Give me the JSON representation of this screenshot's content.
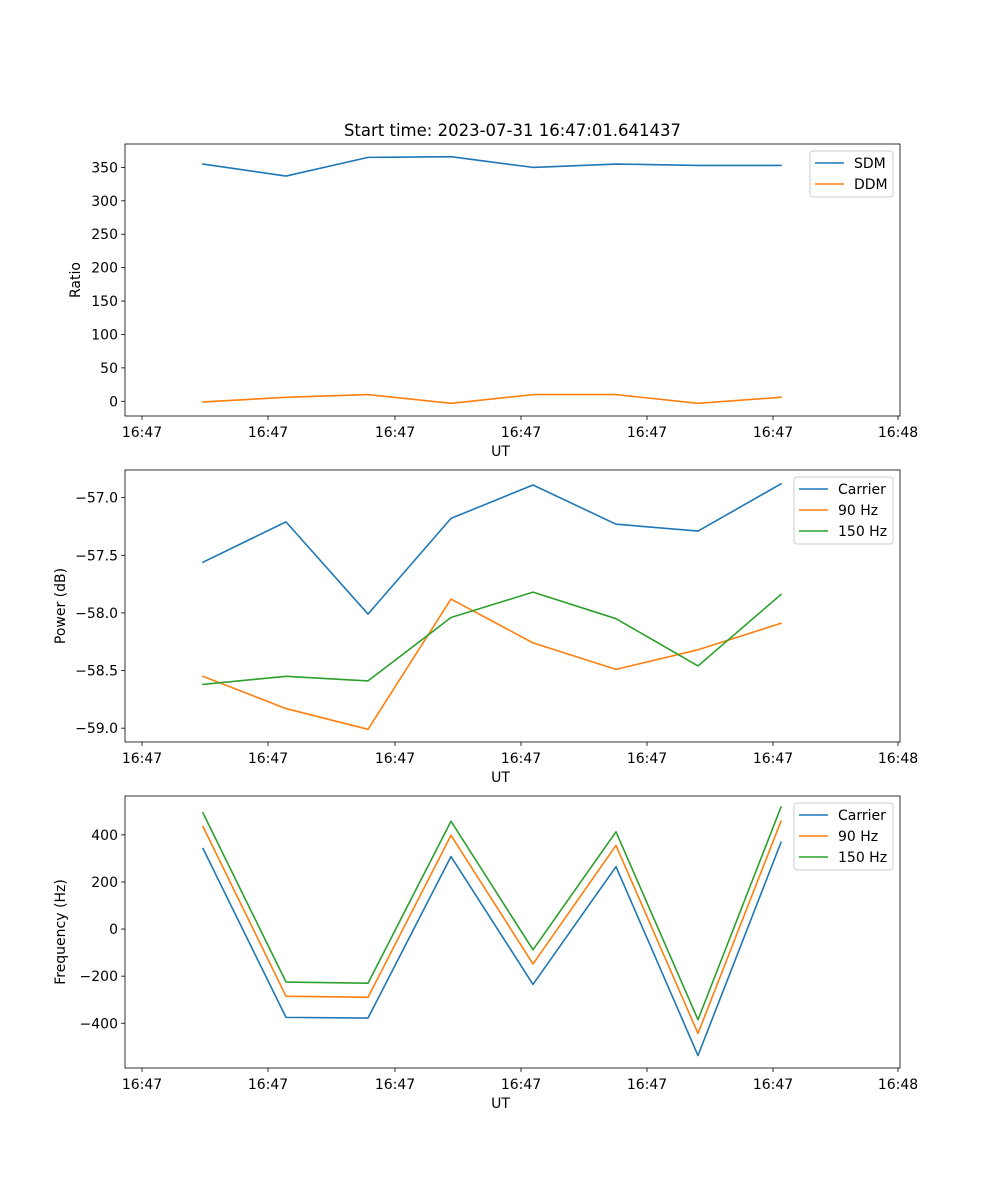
{
  "chart_data": [
    {
      "type": "line",
      "title": "Start time: 2023-07-31 16:47:01.641437",
      "xlabel": "UT",
      "ylabel": "Ratio",
      "x_tick_labels": [
        "16:47",
        "16:47",
        "16:47",
        "16:47",
        "16:47",
        "16:47",
        "16:48"
      ],
      "ylim": [
        -22,
        385
      ],
      "y_ticks": [
        0,
        50,
        100,
        150,
        200,
        250,
        300,
        350
      ],
      "y_tick_labels": [
        "0",
        "50",
        "100",
        "150",
        "200",
        "250",
        "300",
        "350"
      ],
      "legend_position": "top-right",
      "series": [
        {
          "name": "SDM",
          "color": "#1f77b4",
          "values": [
            355,
            337,
            365,
            366,
            350,
            355,
            353,
            353
          ]
        },
        {
          "name": "DDM",
          "color": "#ff7f0e",
          "values": [
            -1,
            6,
            10,
            -3,
            10,
            10,
            -3,
            6
          ]
        }
      ]
    },
    {
      "type": "line",
      "title": "",
      "xlabel": "UT",
      "ylabel": "Power (dB)",
      "x_tick_labels": [
        "16:47",
        "16:47",
        "16:47",
        "16:47",
        "16:47",
        "16:47",
        "16:48"
      ],
      "ylim": [
        -59.12,
        -56.76
      ],
      "y_ticks": [
        -59.0,
        -58.5,
        -58.0,
        -57.5,
        -57.0
      ],
      "y_tick_labels": [
        "−59.0",
        "−58.5",
        "−58.0",
        "−57.5",
        "−57.0"
      ],
      "legend_position": "top-right",
      "series": [
        {
          "name": "Carrier",
          "color": "#1f77b4",
          "values": [
            -57.56,
            -57.21,
            -58.01,
            -57.18,
            -56.89,
            -57.23,
            -57.29,
            -56.88
          ]
        },
        {
          "name": "90 Hz",
          "color": "#ff7f0e",
          "values": [
            -58.55,
            -58.83,
            -59.01,
            -57.88,
            -58.26,
            -58.49,
            -58.32,
            -58.09
          ]
        },
        {
          "name": "150 Hz",
          "color": "#2ca02c",
          "values": [
            -58.62,
            -58.55,
            -58.59,
            -58.04,
            -57.82,
            -58.05,
            -58.46,
            -57.84
          ]
        }
      ]
    },
    {
      "type": "line",
      "title": "",
      "xlabel": "UT",
      "ylabel": "Frequency (Hz)",
      "x_tick_labels": [
        "16:47",
        "16:47",
        "16:47",
        "16:47",
        "16:47",
        "16:47",
        "16:48"
      ],
      "ylim": [
        -590,
        565
      ],
      "y_ticks": [
        -400,
        -200,
        0,
        200,
        400
      ],
      "y_tick_labels": [
        "−400",
        "−200",
        "0",
        "200",
        "400"
      ],
      "legend_position": "top-right",
      "series": [
        {
          "name": "Carrier",
          "color": "#1f77b4",
          "values": [
            342,
            -375,
            -378,
            308,
            -235,
            265,
            -537,
            368
          ]
        },
        {
          "name": "90 Hz",
          "color": "#ff7f0e",
          "values": [
            435,
            -285,
            -290,
            398,
            -148,
            355,
            -443,
            458
          ]
        },
        {
          "name": "150 Hz",
          "color": "#2ca02c",
          "values": [
            493,
            -225,
            -230,
            458,
            -88,
            413,
            -385,
            518
          ]
        }
      ]
    }
  ]
}
